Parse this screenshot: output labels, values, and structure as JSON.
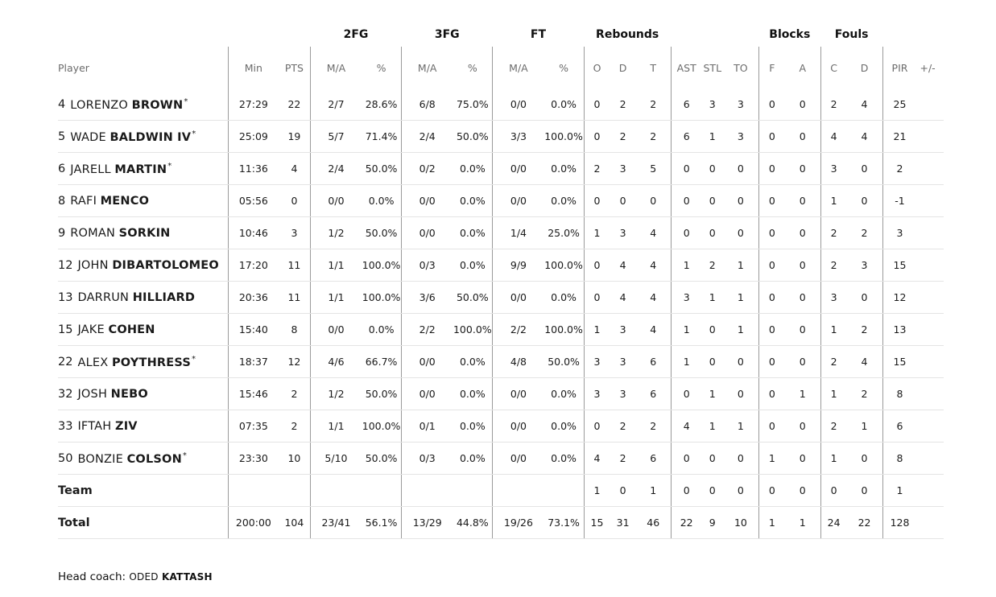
{
  "groups": {
    "fg2": "2FG",
    "fg3": "3FG",
    "ft": "FT",
    "rebounds": "Rebounds",
    "blocks": "Blocks",
    "fouls": "Fouls"
  },
  "columns": {
    "player": "Player",
    "min": "Min",
    "pts": "PTS",
    "fg2_ma": "M/A",
    "fg2_pct": "%",
    "fg3_ma": "M/A",
    "fg3_pct": "%",
    "ft_ma": "M/A",
    "ft_pct": "%",
    "reb_o": "O",
    "reb_d": "D",
    "reb_t": "T",
    "ast": "AST",
    "stl": "STL",
    "to": "TO",
    "blk_f": "F",
    "blk_a": "A",
    "foul_c": "C",
    "foul_d": "D",
    "pir": "PIR",
    "plusminus": "+/-"
  },
  "players": [
    {
      "num": "4",
      "first": "LORENZO",
      "last": "BROWN",
      "star": "*",
      "min": "27:29",
      "pts": "22",
      "fg2_ma": "2/7",
      "fg2_pct": "28.6%",
      "fg3_ma": "6/8",
      "fg3_pct": "75.0%",
      "ft_ma": "0/0",
      "ft_pct": "0.0%",
      "reb_o": "0",
      "reb_d": "2",
      "reb_t": "2",
      "ast": "6",
      "stl": "3",
      "to": "3",
      "blk_f": "0",
      "blk_a": "0",
      "foul_c": "2",
      "foul_d": "4",
      "pir": "25"
    },
    {
      "num": "5",
      "first": "WADE",
      "last": "BALDWIN IV",
      "star": "*",
      "min": "25:09",
      "pts": "19",
      "fg2_ma": "5/7",
      "fg2_pct": "71.4%",
      "fg3_ma": "2/4",
      "fg3_pct": "50.0%",
      "ft_ma": "3/3",
      "ft_pct": "100.0%",
      "reb_o": "0",
      "reb_d": "2",
      "reb_t": "2",
      "ast": "6",
      "stl": "1",
      "to": "3",
      "blk_f": "0",
      "blk_a": "0",
      "foul_c": "4",
      "foul_d": "4",
      "pir": "21"
    },
    {
      "num": "6",
      "first": "JARELL",
      "last": "MARTIN",
      "star": "*",
      "min": "11:36",
      "pts": "4",
      "fg2_ma": "2/4",
      "fg2_pct": "50.0%",
      "fg3_ma": "0/2",
      "fg3_pct": "0.0%",
      "ft_ma": "0/0",
      "ft_pct": "0.0%",
      "reb_o": "2",
      "reb_d": "3",
      "reb_t": "5",
      "ast": "0",
      "stl": "0",
      "to": "0",
      "blk_f": "0",
      "blk_a": "0",
      "foul_c": "3",
      "foul_d": "0",
      "pir": "2"
    },
    {
      "num": "8",
      "first": "RAFI",
      "last": "MENCO",
      "star": "",
      "min": "05:56",
      "pts": "0",
      "fg2_ma": "0/0",
      "fg2_pct": "0.0%",
      "fg3_ma": "0/0",
      "fg3_pct": "0.0%",
      "ft_ma": "0/0",
      "ft_pct": "0.0%",
      "reb_o": "0",
      "reb_d": "0",
      "reb_t": "0",
      "ast": "0",
      "stl": "0",
      "to": "0",
      "blk_f": "0",
      "blk_a": "0",
      "foul_c": "1",
      "foul_d": "0",
      "pir": "-1"
    },
    {
      "num": "9",
      "first": "ROMAN",
      "last": "SORKIN",
      "star": "",
      "min": "10:46",
      "pts": "3",
      "fg2_ma": "1/2",
      "fg2_pct": "50.0%",
      "fg3_ma": "0/0",
      "fg3_pct": "0.0%",
      "ft_ma": "1/4",
      "ft_pct": "25.0%",
      "reb_o": "1",
      "reb_d": "3",
      "reb_t": "4",
      "ast": "0",
      "stl": "0",
      "to": "0",
      "blk_f": "0",
      "blk_a": "0",
      "foul_c": "2",
      "foul_d": "2",
      "pir": "3"
    },
    {
      "num": "12",
      "first": "JOHN",
      "last": "DIBARTOLOMEO",
      "star": "",
      "min": "17:20",
      "pts": "11",
      "fg2_ma": "1/1",
      "fg2_pct": "100.0%",
      "fg3_ma": "0/3",
      "fg3_pct": "0.0%",
      "ft_ma": "9/9",
      "ft_pct": "100.0%",
      "reb_o": "0",
      "reb_d": "4",
      "reb_t": "4",
      "ast": "1",
      "stl": "2",
      "to": "1",
      "blk_f": "0",
      "blk_a": "0",
      "foul_c": "2",
      "foul_d": "3",
      "pir": "15"
    },
    {
      "num": "13",
      "first": "DARRUN",
      "last": "HILLIARD",
      "star": "",
      "min": "20:36",
      "pts": "11",
      "fg2_ma": "1/1",
      "fg2_pct": "100.0%",
      "fg3_ma": "3/6",
      "fg3_pct": "50.0%",
      "ft_ma": "0/0",
      "ft_pct": "0.0%",
      "reb_o": "0",
      "reb_d": "4",
      "reb_t": "4",
      "ast": "3",
      "stl": "1",
      "to": "1",
      "blk_f": "0",
      "blk_a": "0",
      "foul_c": "3",
      "foul_d": "0",
      "pir": "12"
    },
    {
      "num": "15",
      "first": "JAKE",
      "last": "COHEN",
      "star": "",
      "min": "15:40",
      "pts": "8",
      "fg2_ma": "0/0",
      "fg2_pct": "0.0%",
      "fg3_ma": "2/2",
      "fg3_pct": "100.0%",
      "ft_ma": "2/2",
      "ft_pct": "100.0%",
      "reb_o": "1",
      "reb_d": "3",
      "reb_t": "4",
      "ast": "1",
      "stl": "0",
      "to": "1",
      "blk_f": "0",
      "blk_a": "0",
      "foul_c": "1",
      "foul_d": "2",
      "pir": "13"
    },
    {
      "num": "22",
      "first": "ALEX",
      "last": "POYTHRESS",
      "star": "*",
      "min": "18:37",
      "pts": "12",
      "fg2_ma": "4/6",
      "fg2_pct": "66.7%",
      "fg3_ma": "0/0",
      "fg3_pct": "0.0%",
      "ft_ma": "4/8",
      "ft_pct": "50.0%",
      "reb_o": "3",
      "reb_d": "3",
      "reb_t": "6",
      "ast": "1",
      "stl": "0",
      "to": "0",
      "blk_f": "0",
      "blk_a": "0",
      "foul_c": "2",
      "foul_d": "4",
      "pir": "15"
    },
    {
      "num": "32",
      "first": "JOSH",
      "last": "NEBO",
      "star": "",
      "min": "15:46",
      "pts": "2",
      "fg2_ma": "1/2",
      "fg2_pct": "50.0%",
      "fg3_ma": "0/0",
      "fg3_pct": "0.0%",
      "ft_ma": "0/0",
      "ft_pct": "0.0%",
      "reb_o": "3",
      "reb_d": "3",
      "reb_t": "6",
      "ast": "0",
      "stl": "1",
      "to": "0",
      "blk_f": "0",
      "blk_a": "1",
      "foul_c": "1",
      "foul_d": "2",
      "pir": "8"
    },
    {
      "num": "33",
      "first": "IFTAH",
      "last": "ZIV",
      "star": "",
      "min": "07:35",
      "pts": "2",
      "fg2_ma": "1/1",
      "fg2_pct": "100.0%",
      "fg3_ma": "0/1",
      "fg3_pct": "0.0%",
      "ft_ma": "0/0",
      "ft_pct": "0.0%",
      "reb_o": "0",
      "reb_d": "2",
      "reb_t": "2",
      "ast": "4",
      "stl": "1",
      "to": "1",
      "blk_f": "0",
      "blk_a": "0",
      "foul_c": "2",
      "foul_d": "1",
      "pir": "6"
    },
    {
      "num": "50",
      "first": "BONZIE",
      "last": "COLSON",
      "star": "*",
      "min": "23:30",
      "pts": "10",
      "fg2_ma": "5/10",
      "fg2_pct": "50.0%",
      "fg3_ma": "0/3",
      "fg3_pct": "0.0%",
      "ft_ma": "0/0",
      "ft_pct": "0.0%",
      "reb_o": "4",
      "reb_d": "2",
      "reb_t": "6",
      "ast": "0",
      "stl": "0",
      "to": "0",
      "blk_f": "1",
      "blk_a": "0",
      "foul_c": "1",
      "foul_d": "0",
      "pir": "8"
    }
  ],
  "team": {
    "label": "Team",
    "reb_o": "1",
    "reb_d": "0",
    "reb_t": "1",
    "ast": "0",
    "stl": "0",
    "to": "0",
    "blk_f": "0",
    "blk_a": "0",
    "foul_c": "0",
    "foul_d": "0",
    "pir": "1"
  },
  "total": {
    "label": "Total",
    "min": "200:00",
    "pts": "104",
    "fg2_ma": "23/41",
    "fg2_pct": "56.1%",
    "fg3_ma": "13/29",
    "fg3_pct": "44.8%",
    "ft_ma": "19/26",
    "ft_pct": "73.1%",
    "reb_o": "15",
    "reb_d": "31",
    "reb_t": "46",
    "ast": "22",
    "stl": "9",
    "to": "10",
    "blk_f": "1",
    "blk_a": "1",
    "foul_c": "24",
    "foul_d": "22",
    "pir": "128"
  },
  "coach": {
    "label": "Head coach:",
    "first": "ODED",
    "last": "KATTASH"
  }
}
